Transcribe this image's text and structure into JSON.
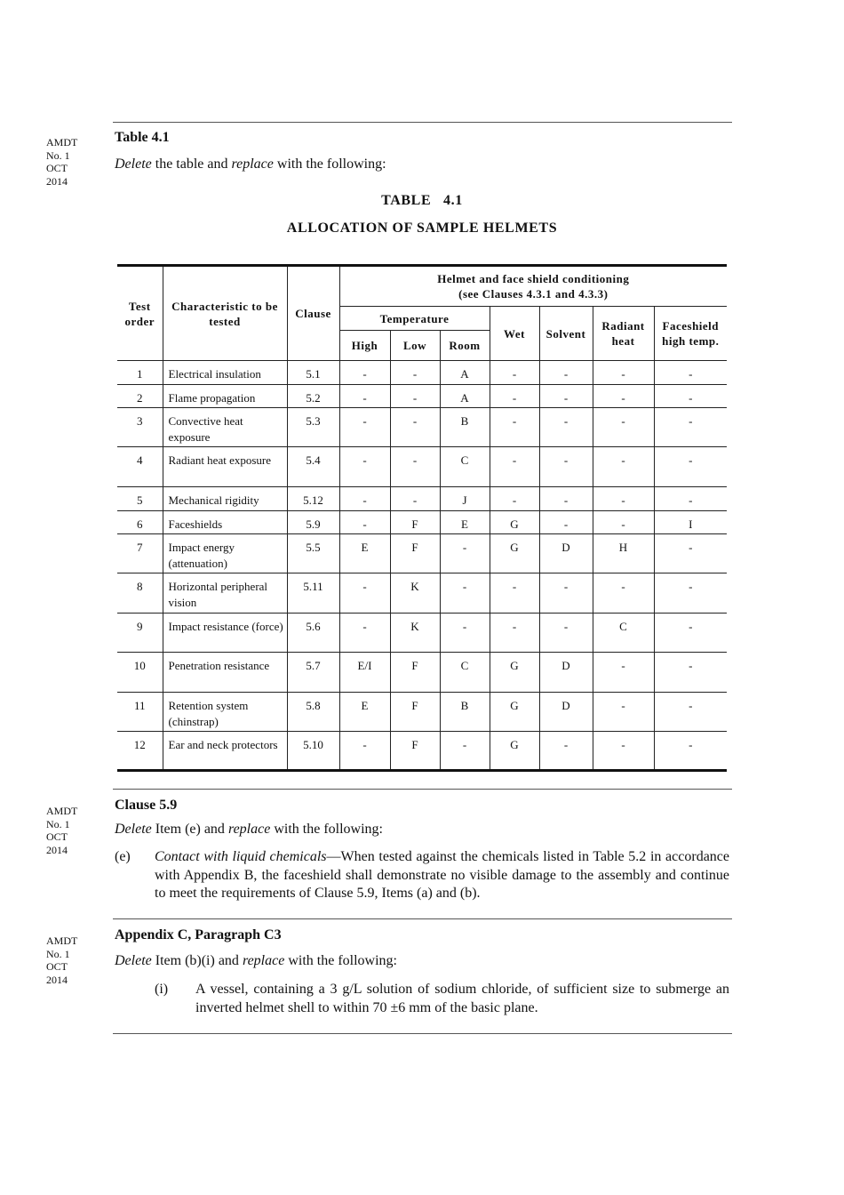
{
  "amendment_note": [
    "AMDT",
    "No. 1",
    "OCT",
    "2014"
  ],
  "section1": {
    "heading": "Table 4.1",
    "instr": {
      "delete": "Delete",
      "mid": " the table and ",
      "replace": "replace",
      "end": " with the following:"
    },
    "table_label": "TABLE   4.1",
    "table_title": "ALLOCATION OF SAMPLE HELMETS"
  },
  "table": {
    "headers": {
      "test_order": "Test order",
      "characteristic": "Characteristic to be tested",
      "clause": "Clause",
      "conditioning": "Helmet and face shield conditioning",
      "conditioning_ref": "(see Clauses 4.3.1 and 4.3.3)",
      "temperature": "Temperature",
      "high": "High",
      "low": "Low",
      "room": "Room",
      "wet": "Wet",
      "solvent": "Solvent",
      "radiant": "Radiant heat",
      "faceshield": "Faceshield high temp."
    },
    "rows": [
      [
        "1",
        "Electrical insulation",
        "5.1",
        "-",
        "-",
        "A",
        "-",
        "-",
        "-",
        "-"
      ],
      [
        "2",
        "Flame propagation",
        "5.2",
        "-",
        "-",
        "A",
        "-",
        "-",
        "-",
        "-"
      ],
      [
        "3",
        "Convective heat exposure",
        "5.3",
        "-",
        "-",
        "B",
        "-",
        "-",
        "-",
        "-"
      ],
      [
        "4",
        "Radiant heat exposure",
        "5.4",
        "-",
        "-",
        "C",
        "-",
        "-",
        "-",
        "-"
      ],
      [
        "5",
        "Mechanical rigidity",
        "5.12",
        "-",
        "-",
        "J",
        "-",
        "-",
        "-",
        "-"
      ],
      [
        "6",
        "Faceshields",
        "5.9",
        "-",
        "F",
        "E",
        "G",
        "-",
        "-",
        "I"
      ],
      [
        "7",
        "Impact energy (attenuation)",
        "5.5",
        "E",
        "F",
        "-",
        "G",
        "D",
        "H",
        "-"
      ],
      [
        "8",
        "Horizontal peripheral vision",
        "5.11",
        "-",
        "K",
        "-",
        "-",
        "-",
        "-",
        "-"
      ],
      [
        "9",
        "Impact resistance (force)",
        "5.6",
        "-",
        "K",
        "-",
        "-",
        "-",
        "C",
        "-"
      ],
      [
        "10",
        "Penetration resistance",
        "5.7",
        "E/I",
        "F",
        "C",
        "G",
        "D",
        "-",
        "-"
      ],
      [
        "11",
        "Retention system (chinstrap)",
        "5.8",
        "E",
        "F",
        "B",
        "G",
        "D",
        "-",
        "-"
      ],
      [
        "12",
        "Ear and neck protectors",
        "5.10",
        "-",
        "F",
        "-",
        "G",
        "-",
        "-",
        "-"
      ]
    ]
  },
  "section2": {
    "heading": "Clause 5.9",
    "instr": {
      "delete": "Delete",
      "mid": " Item (e) and ",
      "replace": "replace",
      "end": " with the following:"
    },
    "item_label": "(e)",
    "item_title": "Contact with liquid chemicals",
    "item_text": "—When tested against the chemicals listed in Table 5.2 in accordance with Appendix B, the faceshield shall demonstrate no visible damage to the assembly and continue to meet the requirements of Clause 5.9, Items (a) and (b)."
  },
  "section3": {
    "heading": "Appendix C, Paragraph C3",
    "instr": {
      "delete": "Delete",
      "mid": " Item (b)(i) and ",
      "replace": "replace",
      "end": " with the following:"
    },
    "item_label": "(i)",
    "item_text": "A vessel, containing a 3 g/L solution of sodium chloride, of sufficient size to submerge an inverted helmet shell to within 70 ±6 mm of the basic plane."
  }
}
